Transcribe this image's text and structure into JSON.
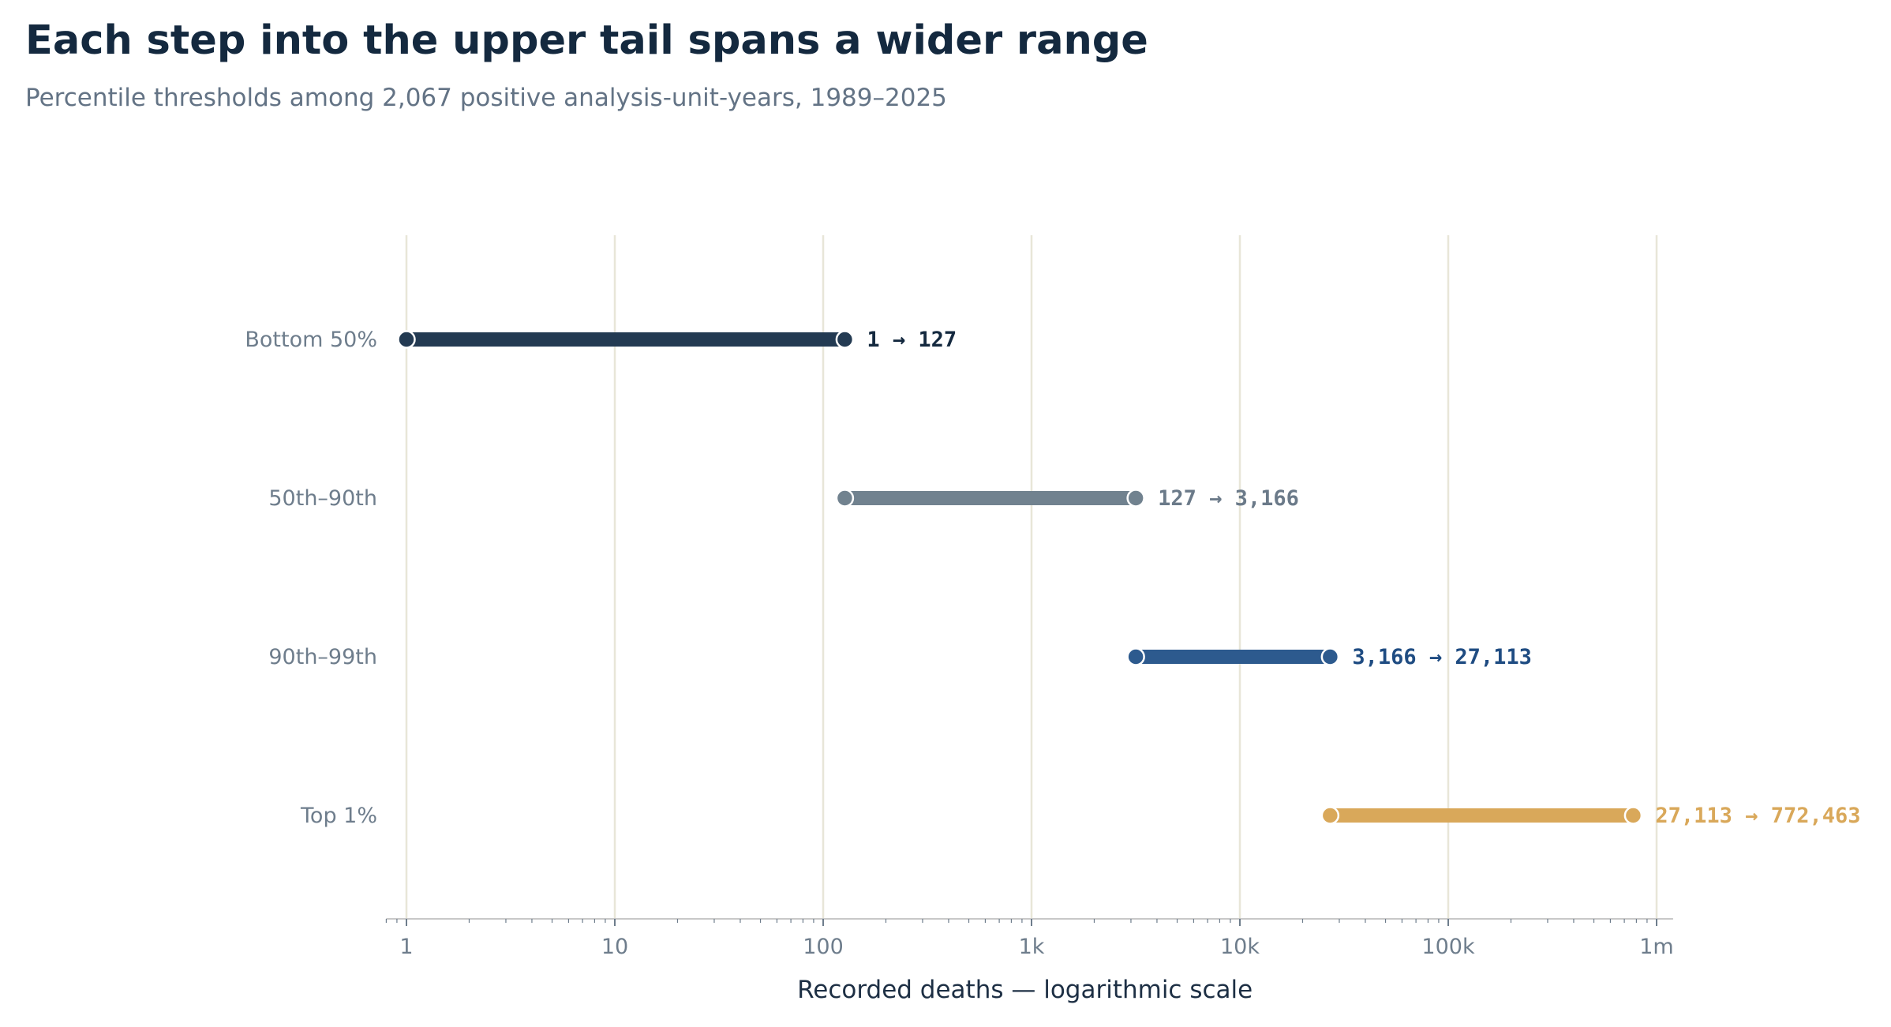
{
  "chart_data": {
    "type": "range",
    "title": "Each step into the upper tail spans a wider range",
    "subtitle": "Percentile thresholds among 2,067 positive analysis-unit-years, 1989–2025",
    "xlabel": "Recorded deaths — logarithmic scale",
    "ylabel": "",
    "x_scale": "log",
    "xlim": [
      0.8,
      1200000
    ],
    "x_ticks": [
      {
        "value": 1,
        "label": "1"
      },
      {
        "value": 10,
        "label": "10"
      },
      {
        "value": 100,
        "label": "100"
      },
      {
        "value": 1000,
        "label": "1k"
      },
      {
        "value": 10000,
        "label": "10k"
      },
      {
        "value": 100000,
        "label": "100k"
      },
      {
        "value": 1000000,
        "label": "1m"
      }
    ],
    "grid": "vertical",
    "legend": "none",
    "categories": [
      "Bottom 50%",
      "50th–90th",
      "90th–99th",
      "Top 1%"
    ],
    "ranges": [
      {
        "category": "Bottom 50%",
        "start": 1,
        "end": 127,
        "label": "1 → 127",
        "color": "#233a52"
      },
      {
        "category": "50th–90th",
        "start": 127,
        "end": 3166,
        "label": "127 → 3,166",
        "color": "#71828f"
      },
      {
        "category": "90th–99th",
        "start": 3166,
        "end": 27113,
        "label": "3,166 → 27,113",
        "color": "#2d5a8e"
      },
      {
        "category": "Top 1%",
        "start": 27113,
        "end": 772463,
        "label": "27,113 → 772,463",
        "color": "#d9a85a"
      }
    ],
    "label_colors": [
      "#14293f",
      "#6b7a89",
      "#1f4c82",
      "#d9a85a"
    ],
    "colors": {
      "grid": "#e8e6d8",
      "axis": "#c8c8c8",
      "text_muted": "#6e7d8c"
    }
  }
}
